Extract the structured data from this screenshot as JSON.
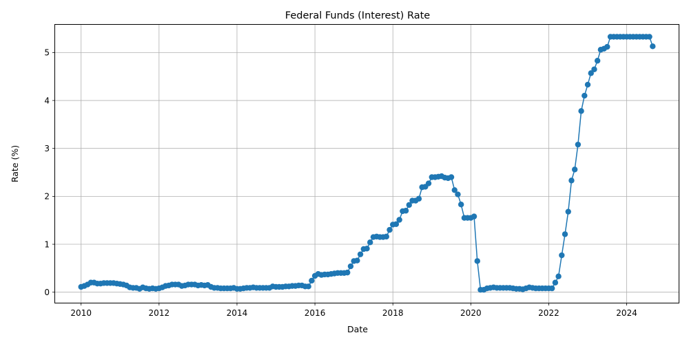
{
  "chart_data": {
    "type": "line",
    "title": "Federal Funds (Interest) Rate",
    "xlabel": "Date",
    "ylabel": "Rate (%)",
    "grid": true,
    "xlim": [
      "2009-05",
      "2025-05"
    ],
    "ylim": [
      -0.22,
      5.58
    ],
    "x_ticks": [
      {
        "value": "2010-01",
        "label": "2010"
      },
      {
        "value": "2012-01",
        "label": "2012"
      },
      {
        "value": "2014-01",
        "label": "2014"
      },
      {
        "value": "2016-01",
        "label": "2016"
      },
      {
        "value": "2018-01",
        "label": "2018"
      },
      {
        "value": "2020-01",
        "label": "2020"
      },
      {
        "value": "2022-01",
        "label": "2022"
      },
      {
        "value": "2024-01",
        "label": "2024"
      }
    ],
    "y_ticks": [
      0,
      1,
      2,
      3,
      4,
      5
    ],
    "colors": {
      "series": "#1f77b4",
      "grid": "#b0b0b0"
    },
    "series": [
      {
        "start": "2010-01",
        "frequency": "monthly",
        "marker": "circle",
        "values": [
          0.11,
          0.13,
          0.16,
          0.2,
          0.2,
          0.18,
          0.18,
          0.19,
          0.19,
          0.19,
          0.19,
          0.18,
          0.17,
          0.16,
          0.14,
          0.1,
          0.09,
          0.09,
          0.07,
          0.1,
          0.08,
          0.07,
          0.08,
          0.07,
          0.08,
          0.1,
          0.13,
          0.14,
          0.16,
          0.16,
          0.16,
          0.13,
          0.14,
          0.16,
          0.16,
          0.16,
          0.14,
          0.15,
          0.14,
          0.15,
          0.11,
          0.09,
          0.09,
          0.08,
          0.08,
          0.08,
          0.08,
          0.09,
          0.07,
          0.07,
          0.08,
          0.09,
          0.09,
          0.1,
          0.09,
          0.09,
          0.09,
          0.09,
          0.09,
          0.12,
          0.11,
          0.11,
          0.11,
          0.12,
          0.12,
          0.13,
          0.13,
          0.14,
          0.14,
          0.12,
          0.12,
          0.24,
          0.34,
          0.38,
          0.36,
          0.37,
          0.37,
          0.38,
          0.39,
          0.4,
          0.4,
          0.4,
          0.41,
          0.54,
          0.65,
          0.66,
          0.79,
          0.9,
          0.91,
          1.04,
          1.15,
          1.16,
          1.15,
          1.15,
          1.16,
          1.3,
          1.41,
          1.42,
          1.51,
          1.69,
          1.7,
          1.82,
          1.91,
          1.91,
          1.95,
          2.19,
          2.2,
          2.27,
          2.4,
          2.4,
          2.41,
          2.42,
          2.39,
          2.38,
          2.4,
          2.13,
          2.04,
          1.83,
          1.55,
          1.55,
          1.55,
          1.58,
          0.65,
          0.05,
          0.05,
          0.08,
          0.09,
          0.1,
          0.09,
          0.09,
          0.09,
          0.09,
          0.09,
          0.08,
          0.07,
          0.07,
          0.06,
          0.08,
          0.1,
          0.09,
          0.08,
          0.08,
          0.08,
          0.08,
          0.08,
          0.08,
          0.2,
          0.33,
          0.77,
          1.21,
          1.68,
          2.33,
          2.56,
          3.08,
          3.78,
          4.1,
          4.33,
          4.57,
          4.65,
          4.83,
          5.06,
          5.08,
          5.12,
          5.33,
          5.33,
          5.33,
          5.33,
          5.33,
          5.33,
          5.33,
          5.33,
          5.33,
          5.33,
          5.33,
          5.33,
          5.33,
          5.13
        ]
      }
    ]
  }
}
